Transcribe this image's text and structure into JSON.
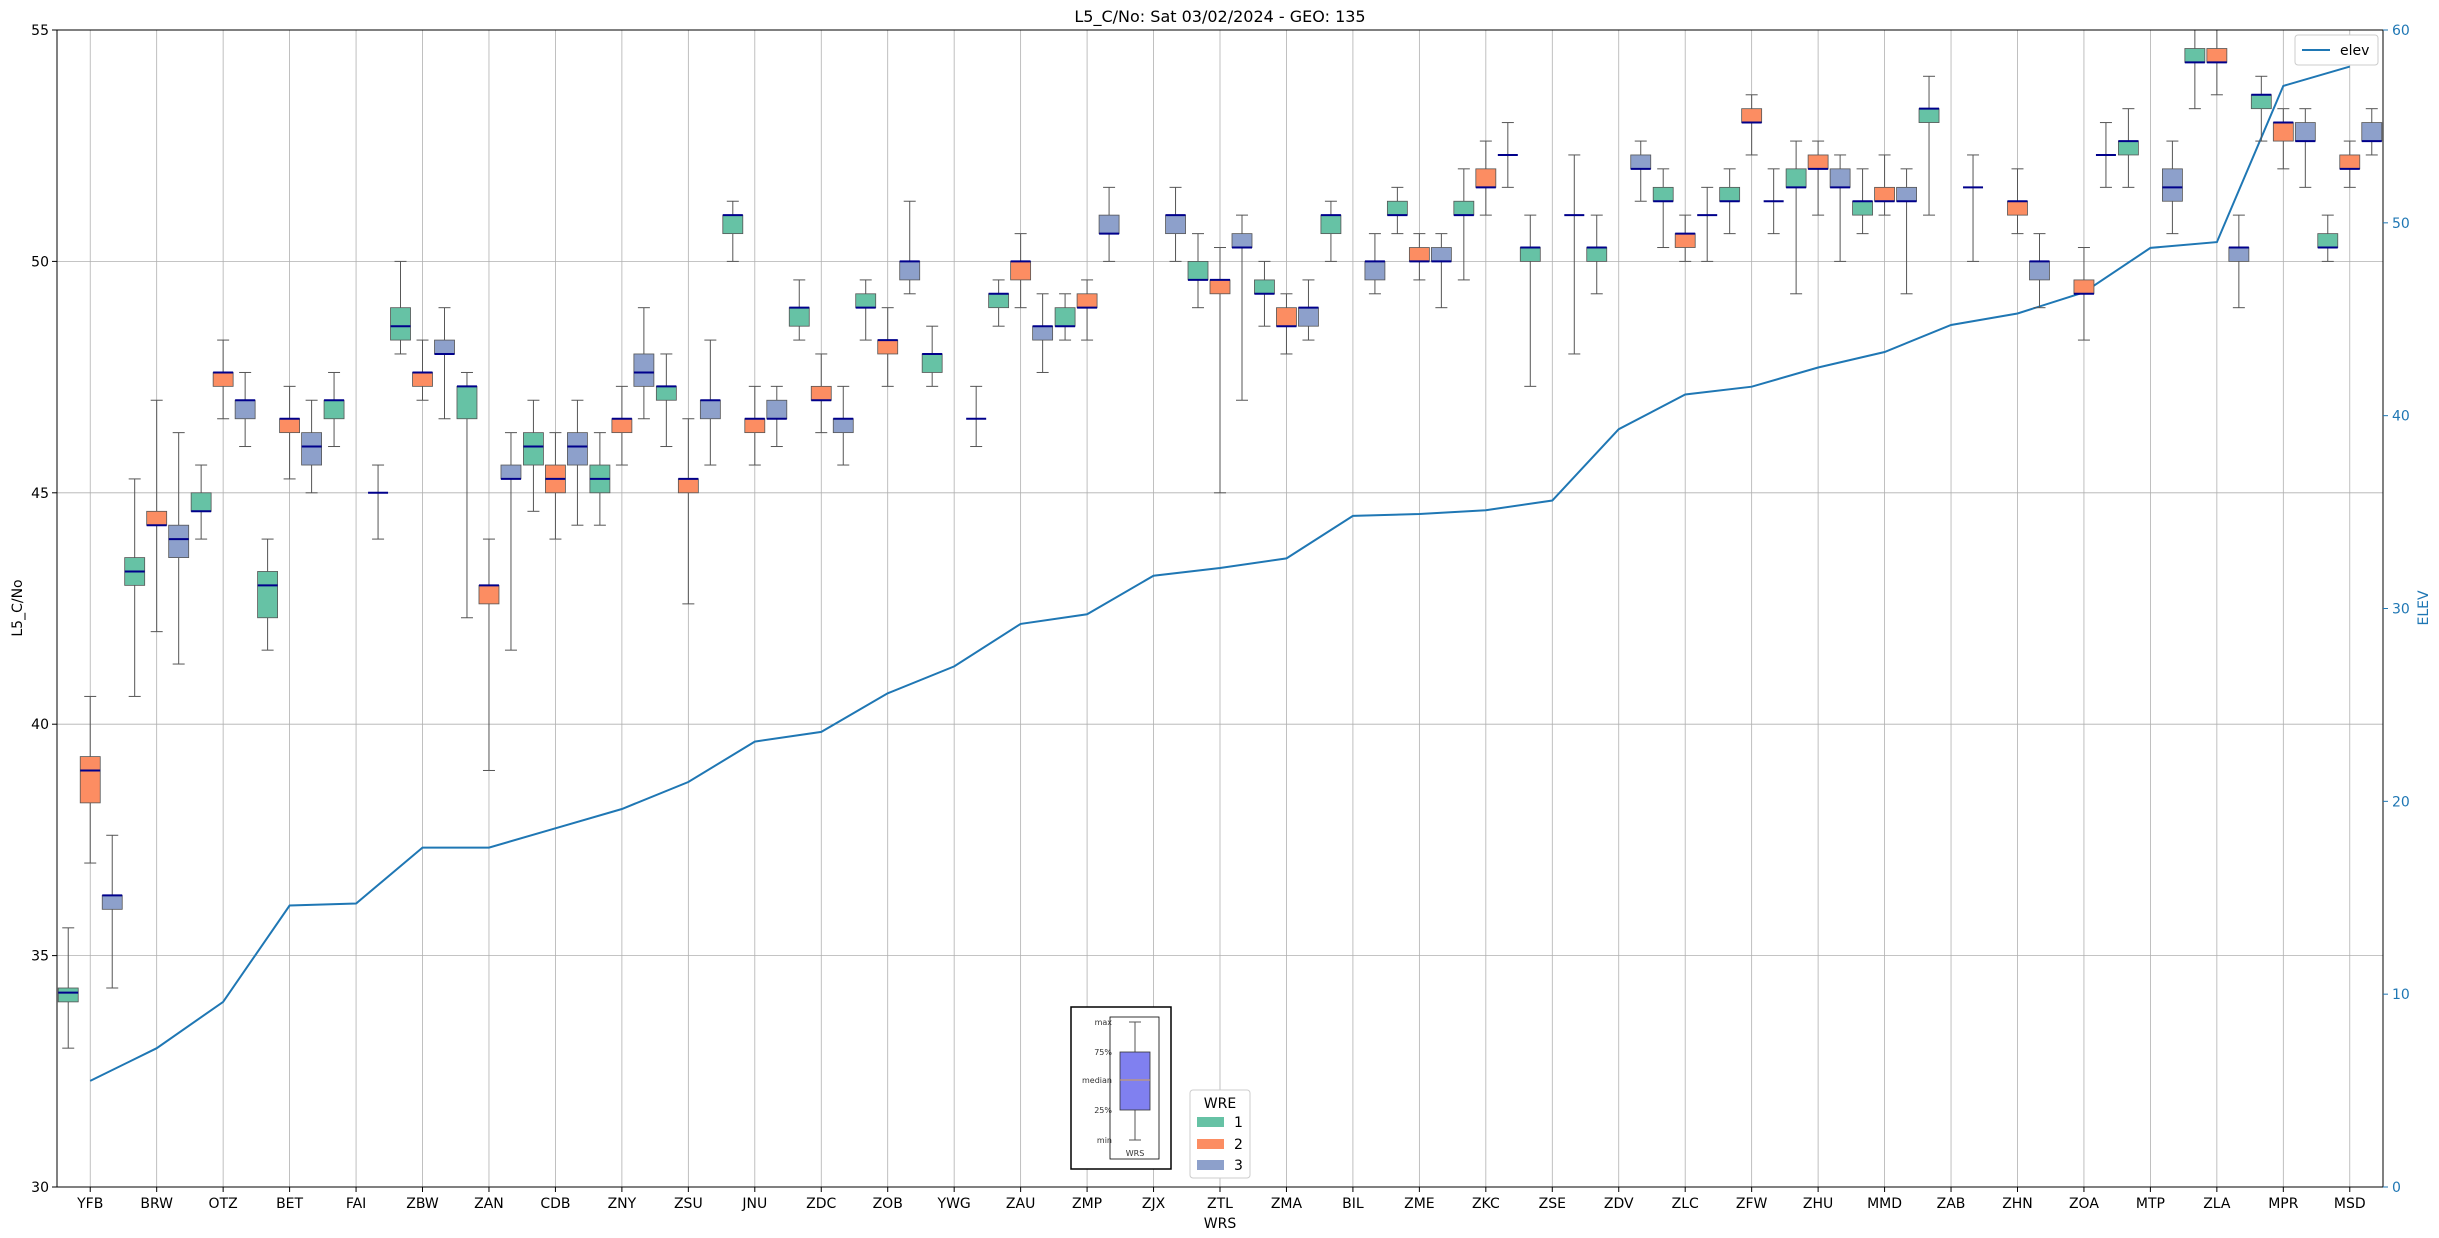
{
  "chart_data": {
    "type": "box",
    "title": "L5_C/No: Sat 03/02/2024 - GEO: 135",
    "xlabel": "WRS",
    "ylabel": "L5_C/No",
    "ylabel_right": "ELEV",
    "ylim": [
      30,
      55
    ],
    "ylim_right": [
      0,
      60
    ],
    "grid": true,
    "categories": [
      "YFB",
      "BRW",
      "OTZ",
      "BET",
      "FAI",
      "ZBW",
      "ZAN",
      "CDB",
      "ZNY",
      "ZSU",
      "JNU",
      "ZDC",
      "ZOB",
      "YWG",
      "ZAU",
      "ZMP",
      "ZJX",
      "ZTL",
      "ZMA",
      "BIL",
      "ZME",
      "ZKC",
      "ZSE",
      "ZDV",
      "ZLC",
      "ZFW",
      "ZHU",
      "MMD",
      "ZAB",
      "ZHN",
      "ZOA",
      "MTP",
      "ZLA",
      "MPR",
      "MSD"
    ],
    "yticks": [
      30,
      35,
      40,
      45,
      50,
      55
    ],
    "yticks_right": [
      0,
      10,
      20,
      30,
      40,
      50,
      60
    ],
    "wre_colors": {
      "1": "#66c2a5",
      "2": "#fc8d62",
      "3": "#8da0cb"
    },
    "median_color": "#00008b",
    "series": [
      {
        "name": "1",
        "boxes": [
          {
            "x": "YFB",
            "min": 33.0,
            "q1": 34.0,
            "median": 34.2,
            "q3": 34.3,
            "max": 35.6
          },
          {
            "x": "BRW",
            "min": 40.6,
            "q1": 43.0,
            "median": 43.3,
            "q3": 43.6,
            "max": 45.3
          },
          {
            "x": "OTZ",
            "min": 44.0,
            "q1": 44.6,
            "median": 44.6,
            "q3": 45.0,
            "max": 45.6
          },
          {
            "x": "BET",
            "min": 41.6,
            "q1": 42.3,
            "median": 43.0,
            "q3": 43.3,
            "max": 44.0
          },
          {
            "x": "FAI",
            "min": 46.0,
            "q1": 46.6,
            "median": 47.0,
            "q3": 47.0,
            "max": 47.6
          },
          {
            "x": "ZBW",
            "min": 48.0,
            "q1": 48.3,
            "median": 48.6,
            "q3": 49.0,
            "max": 50.0
          },
          {
            "x": "ZAN",
            "min": 42.3,
            "q1": 46.6,
            "median": 47.3,
            "q3": 47.3,
            "max": 47.6
          },
          {
            "x": "CDB",
            "min": 44.6,
            "q1": 45.6,
            "median": 46.0,
            "q3": 46.3,
            "max": 47.0
          },
          {
            "x": "ZNY",
            "min": 44.3,
            "q1": 45.0,
            "median": 45.3,
            "q3": 45.6,
            "max": 46.3
          },
          {
            "x": "ZSU",
            "min": 46.0,
            "q1": 47.0,
            "median": 47.3,
            "q3": 47.3,
            "max": 48.0
          },
          {
            "x": "JNU",
            "min": 50.0,
            "q1": 50.6,
            "median": 51.0,
            "q3": 51.0,
            "max": 51.3
          },
          {
            "x": "ZDC",
            "min": 48.3,
            "q1": 48.6,
            "median": 49.0,
            "q3": 49.0,
            "max": 49.6
          },
          {
            "x": "ZOB",
            "min": 48.3,
            "q1": 49.0,
            "median": 49.0,
            "q3": 49.3,
            "max": 49.6
          },
          {
            "x": "YWG",
            "min": 47.3,
            "q1": 47.6,
            "median": 48.0,
            "q3": 48.0,
            "max": 48.6
          },
          {
            "x": "ZAU",
            "min": 48.6,
            "q1": 49.0,
            "median": 49.3,
            "q3": 49.3,
            "max": 49.6
          },
          {
            "x": "ZMP",
            "min": 48.3,
            "q1": 48.6,
            "median": 48.6,
            "q3": 49.0,
            "max": 49.3
          },
          {
            "x": "ZTL",
            "min": 49.0,
            "q1": 49.6,
            "median": 49.6,
            "q3": 50.0,
            "max": 50.6
          },
          {
            "x": "ZMA",
            "min": 48.6,
            "q1": 49.3,
            "median": 49.3,
            "q3": 49.6,
            "max": 50.0
          },
          {
            "x": "BIL",
            "min": 50.0,
            "q1": 50.6,
            "median": 51.0,
            "q3": 51.0,
            "max": 51.3
          },
          {
            "x": "ZME",
            "min": 50.6,
            "q1": 51.0,
            "median": 51.0,
            "q3": 51.3,
            "max": 51.6
          },
          {
            "x": "ZKC",
            "min": 49.6,
            "q1": 51.0,
            "median": 51.0,
            "q3": 51.3,
            "max": 52.0
          },
          {
            "x": "ZSE",
            "min": 47.3,
            "q1": 50.0,
            "median": 50.3,
            "q3": 50.3,
            "max": 51.0
          },
          {
            "x": "ZDV",
            "min": 49.3,
            "q1": 50.0,
            "median": 50.3,
            "q3": 50.3,
            "max": 51.0
          },
          {
            "x": "ZLC",
            "min": 50.3,
            "q1": 51.3,
            "median": 51.3,
            "q3": 51.6,
            "max": 52.0
          },
          {
            "x": "ZFW",
            "min": 50.6,
            "q1": 51.3,
            "median": 51.3,
            "q3": 51.6,
            "max": 52.0
          },
          {
            "x": "ZHU",
            "min": 49.3,
            "q1": 51.6,
            "median": 51.6,
            "q3": 52.0,
            "max": 52.6
          },
          {
            "x": "MMD",
            "min": 50.6,
            "q1": 51.0,
            "median": 51.3,
            "q3": 51.3,
            "max": 52.0
          },
          {
            "x": "ZAB",
            "min": 51.0,
            "q1": 53.0,
            "median": 53.3,
            "q3": 53.3,
            "max": 54.0
          },
          {
            "x": "MTP",
            "min": 51.6,
            "q1": 52.3,
            "median": 52.6,
            "q3": 52.6,
            "max": 53.3
          },
          {
            "x": "ZLA",
            "min": 53.3,
            "q1": 54.3,
            "median": 54.3,
            "q3": 54.6,
            "max": 55.0
          },
          {
            "x": "MPR",
            "min": 52.6,
            "q1": 53.3,
            "median": 53.6,
            "q3": 53.6,
            "max": 54.0
          },
          {
            "x": "MSD",
            "min": 50.0,
            "q1": 50.3,
            "median": 50.3,
            "q3": 50.6,
            "max": 51.0
          }
        ]
      },
      {
        "name": "2",
        "boxes": [
          {
            "x": "YFB",
            "min": 37.0,
            "q1": 38.3,
            "median": 39.0,
            "q3": 39.3,
            "max": 40.6
          },
          {
            "x": "BRW",
            "min": 42.0,
            "q1": 44.3,
            "median": 44.3,
            "q3": 44.6,
            "max": 47.0
          },
          {
            "x": "OTZ",
            "min": 46.6,
            "q1": 47.3,
            "median": 47.6,
            "q3": 47.6,
            "max": 48.3
          },
          {
            "x": "BET",
            "min": 45.3,
            "q1": 46.3,
            "median": 46.6,
            "q3": 46.6,
            "max": 47.3
          },
          {
            "x": "ZBW",
            "min": 47.0,
            "q1": 47.3,
            "median": 47.6,
            "q3": 47.6,
            "max": 48.3
          },
          {
            "x": "ZAN",
            "min": 39.0,
            "q1": 42.6,
            "median": 43.0,
            "q3": 43.0,
            "max": 44.0
          },
          {
            "x": "CDB",
            "min": 44.0,
            "q1": 45.0,
            "median": 45.3,
            "q3": 45.6,
            "max": 46.3
          },
          {
            "x": "ZNY",
            "min": 45.6,
            "q1": 46.3,
            "median": 46.6,
            "q3": 46.6,
            "max": 47.3
          },
          {
            "x": "ZSU",
            "min": 42.6,
            "q1": 45.0,
            "median": 45.3,
            "q3": 45.3,
            "max": 46.6
          },
          {
            "x": "JNU",
            "min": 45.6,
            "q1": 46.3,
            "median": 46.6,
            "q3": 46.6,
            "max": 47.3
          },
          {
            "x": "ZDC",
            "min": 46.3,
            "q1": 47.0,
            "median": 47.0,
            "q3": 47.3,
            "max": 48.0
          },
          {
            "x": "ZOB",
            "min": 47.3,
            "q1": 48.0,
            "median": 48.3,
            "q3": 48.3,
            "max": 49.0
          },
          {
            "x": "ZAU",
            "min": 49.0,
            "q1": 49.6,
            "median": 50.0,
            "q3": 50.0,
            "max": 50.6
          },
          {
            "x": "ZMP",
            "min": 48.3,
            "q1": 49.0,
            "median": 49.0,
            "q3": 49.3,
            "max": 49.6
          },
          {
            "x": "ZTL",
            "min": 45.0,
            "q1": 49.3,
            "median": 49.6,
            "q3": 49.6,
            "max": 50.3
          },
          {
            "x": "ZMA",
            "min": 48.0,
            "q1": 48.6,
            "median": 48.6,
            "q3": 49.0,
            "max": 49.3
          },
          {
            "x": "ZME",
            "min": 49.6,
            "q1": 50.0,
            "median": 50.0,
            "q3": 50.3,
            "max": 50.6
          },
          {
            "x": "ZKC",
            "min": 51.0,
            "q1": 51.6,
            "median": 51.6,
            "q3": 52.0,
            "max": 52.6
          },
          {
            "x": "ZLC",
            "min": 50.0,
            "q1": 50.3,
            "median": 50.6,
            "q3": 50.6,
            "max": 51.0
          },
          {
            "x": "ZFW",
            "min": 52.3,
            "q1": 53.0,
            "median": 53.0,
            "q3": 53.3,
            "max": 53.6
          },
          {
            "x": "ZHU",
            "min": 51.0,
            "q1": 52.0,
            "median": 52.0,
            "q3": 52.3,
            "max": 52.6
          },
          {
            "x": "MMD",
            "min": 51.0,
            "q1": 51.3,
            "median": 51.3,
            "q3": 51.6,
            "max": 52.3
          },
          {
            "x": "ZHN",
            "min": 50.6,
            "q1": 51.0,
            "median": 51.3,
            "q3": 51.3,
            "max": 52.0
          },
          {
            "x": "ZOA",
            "min": 48.3,
            "q1": 49.3,
            "median": 49.3,
            "q3": 49.6,
            "max": 50.3
          },
          {
            "x": "ZLA",
            "min": 53.6,
            "q1": 54.3,
            "median": 54.3,
            "q3": 54.6,
            "max": 55.0
          },
          {
            "x": "MPR",
            "min": 52.0,
            "q1": 52.6,
            "median": 53.0,
            "q3": 53.0,
            "max": 53.3
          },
          {
            "x": "MSD",
            "min": 51.6,
            "q1": 52.0,
            "median": 52.0,
            "q3": 52.3,
            "max": 52.6
          }
        ]
      },
      {
        "name": "3",
        "boxes": [
          {
            "x": "YFB",
            "min": 34.3,
            "q1": 36.0,
            "median": 36.3,
            "q3": 36.3,
            "max": 37.6
          },
          {
            "x": "BRW",
            "min": 41.3,
            "q1": 43.6,
            "median": 44.0,
            "q3": 44.3,
            "max": 46.3
          },
          {
            "x": "OTZ",
            "min": 46.0,
            "q1": 46.6,
            "median": 47.0,
            "q3": 47.0,
            "max": 47.6
          },
          {
            "x": "BET",
            "min": 45.0,
            "q1": 45.6,
            "median": 46.0,
            "q3": 46.3,
            "max": 47.0
          },
          {
            "x": "FAI",
            "min": 44.0,
            "q1": 45.0,
            "median": 45.0,
            "q3": 45.0,
            "max": 45.6
          },
          {
            "x": "ZBW",
            "min": 46.6,
            "q1": 48.0,
            "median": 48.0,
            "q3": 48.3,
            "max": 49.0
          },
          {
            "x": "ZAN",
            "min": 41.6,
            "q1": 45.3,
            "median": 45.3,
            "q3": 45.6,
            "max": 46.3
          },
          {
            "x": "CDB",
            "min": 44.3,
            "q1": 45.6,
            "median": 46.0,
            "q3": 46.3,
            "max": 47.0
          },
          {
            "x": "ZNY",
            "min": 46.6,
            "q1": 47.3,
            "median": 47.6,
            "q3": 48.0,
            "max": 49.0
          },
          {
            "x": "ZSU",
            "min": 45.6,
            "q1": 46.6,
            "median": 47.0,
            "q3": 47.0,
            "max": 48.3
          },
          {
            "x": "JNU",
            "min": 46.0,
            "q1": 46.6,
            "median": 46.6,
            "q3": 47.0,
            "max": 47.3
          },
          {
            "x": "ZDC",
            "min": 45.6,
            "q1": 46.3,
            "median": 46.6,
            "q3": 46.6,
            "max": 47.3
          },
          {
            "x": "ZOB",
            "min": 49.3,
            "q1": 49.6,
            "median": 50.0,
            "q3": 50.0,
            "max": 51.3
          },
          {
            "x": "YWG",
            "min": 46.0,
            "q1": 46.6,
            "median": 46.6,
            "q3": 46.6,
            "max": 47.3
          },
          {
            "x": "ZAU",
            "min": 47.6,
            "q1": 48.3,
            "median": 48.6,
            "q3": 48.6,
            "max": 49.3
          },
          {
            "x": "ZMP",
            "min": 50.0,
            "q1": 50.6,
            "median": 50.6,
            "q3": 51.0,
            "max": 51.6
          },
          {
            "x": "ZJX",
            "min": 50.0,
            "q1": 50.6,
            "median": 51.0,
            "q3": 51.0,
            "max": 51.6
          },
          {
            "x": "ZTL",
            "min": 47.0,
            "q1": 50.3,
            "median": 50.3,
            "q3": 50.6,
            "max": 51.0
          },
          {
            "x": "ZMA",
            "min": 48.3,
            "q1": 48.6,
            "median": 49.0,
            "q3": 49.0,
            "max": 49.6
          },
          {
            "x": "BIL",
            "min": 49.3,
            "q1": 49.6,
            "median": 50.0,
            "q3": 50.0,
            "max": 50.6
          },
          {
            "x": "ZME",
            "min": 49.0,
            "q1": 50.0,
            "median": 50.0,
            "q3": 50.3,
            "max": 50.6
          },
          {
            "x": "ZKC",
            "min": 51.6,
            "q1": 52.3,
            "median": 52.3,
            "q3": 52.3,
            "max": 53.0
          },
          {
            "x": "ZSE",
            "min": 48.0,
            "q1": 51.0,
            "median": 51.0,
            "q3": 51.0,
            "max": 52.3
          },
          {
            "x": "ZDV",
            "min": 51.3,
            "q1": 52.0,
            "median": 52.0,
            "q3": 52.3,
            "max": 52.6
          },
          {
            "x": "ZLC",
            "min": 50.0,
            "q1": 51.0,
            "median": 51.0,
            "q3": 51.0,
            "max": 51.6
          },
          {
            "x": "ZFW",
            "min": 50.6,
            "q1": 51.3,
            "median": 51.3,
            "q3": 51.3,
            "max": 52.0
          },
          {
            "x": "ZHU",
            "min": 50.0,
            "q1": 51.6,
            "median": 51.6,
            "q3": 52.0,
            "max": 52.3
          },
          {
            "x": "MMD",
            "min": 49.3,
            "q1": 51.3,
            "median": 51.3,
            "q3": 51.6,
            "max": 52.0
          },
          {
            "x": "ZAB",
            "min": 50.0,
            "q1": 51.6,
            "median": 51.6,
            "q3": 51.6,
            "max": 52.3
          },
          {
            "x": "ZHN",
            "min": 49.0,
            "q1": 49.6,
            "median": 50.0,
            "q3": 50.0,
            "max": 50.6
          },
          {
            "x": "ZOA",
            "min": 51.6,
            "q1": 52.3,
            "median": 52.3,
            "q3": 52.3,
            "max": 53.0
          },
          {
            "x": "MTP",
            "min": 50.6,
            "q1": 51.3,
            "median": 51.6,
            "q3": 52.0,
            "max": 52.6
          },
          {
            "x": "ZLA",
            "min": 49.0,
            "q1": 50.0,
            "median": 50.3,
            "q3": 50.3,
            "max": 51.0
          },
          {
            "x": "MPR",
            "min": 51.6,
            "q1": 52.6,
            "median": 52.6,
            "q3": 53.0,
            "max": 53.3
          },
          {
            "x": "MSD",
            "min": 52.3,
            "q1": 52.6,
            "median": 52.6,
            "q3": 53.0,
            "max": 53.3
          }
        ]
      }
    ],
    "elev": {
      "name": "elev",
      "color": "#1f77b4",
      "values": [
        5.5,
        7.2,
        9.6,
        14.6,
        14.7,
        17.6,
        17.6,
        18.6,
        19.6,
        21.0,
        23.1,
        23.6,
        25.6,
        27.0,
        29.2,
        29.7,
        31.7,
        32.1,
        32.6,
        34.8,
        34.9,
        35.1,
        35.6,
        39.3,
        41.1,
        41.5,
        42.5,
        43.3,
        44.7,
        45.3,
        46.4,
        48.7,
        49.0,
        57.1,
        58.1
      ]
    },
    "wre_legend": {
      "title": "WRE",
      "entries": [
        "1",
        "2",
        "3"
      ]
    },
    "line_legend": {
      "entries": [
        "elev"
      ],
      "position": "top-right"
    },
    "box_key": {
      "labels": [
        "max",
        "75%",
        "median",
        "25%",
        "min"
      ],
      "xlabel": "WRS"
    }
  }
}
